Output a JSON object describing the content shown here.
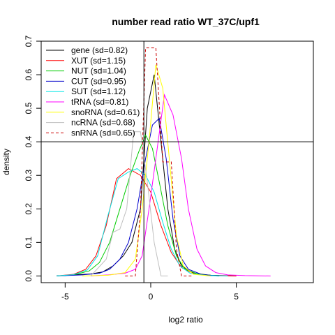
{
  "chart_data": {
    "type": "line",
    "title": "number read ratio WT_37C/upf1",
    "xlabel": "log2 ratio",
    "ylabel": "density",
    "xlim": [
      -6.4,
      9.5
    ],
    "ylim": [
      -0.02,
      0.7
    ],
    "x_ticks": [
      -5,
      0,
      5
    ],
    "y_ticks": [
      0.0,
      0.1,
      0.2,
      0.3,
      0.4,
      0.5,
      0.6,
      0.7
    ],
    "reference_lines": [
      {
        "orientation": "vertical",
        "x": -0.4
      },
      {
        "orientation": "horizontal",
        "y": 0.4
      }
    ],
    "legend": {
      "placement": "top-left"
    },
    "series": [
      {
        "name": "gene (sd=0.82)",
        "color": "#000000",
        "dash": "solid",
        "points": [
          [
            -5.5,
            0
          ],
          [
            -4.5,
            0.003
          ],
          [
            -3.5,
            0.006
          ],
          [
            -2.8,
            0.012
          ],
          [
            -2.2,
            0.03
          ],
          [
            -1.6,
            0.06
          ],
          [
            -1.1,
            0.1
          ],
          [
            -0.6,
            0.2
          ],
          [
            -0.2,
            0.5
          ],
          [
            0.2,
            0.6
          ],
          [
            0.6,
            0.4
          ],
          [
            1.0,
            0.2
          ],
          [
            1.4,
            0.08
          ],
          [
            1.8,
            0.03
          ],
          [
            2.5,
            0.008
          ],
          [
            3.5,
            0.002
          ],
          [
            5.0,
            0
          ]
        ]
      },
      {
        "name": "XUT (sd=1.15)",
        "color": "#ff0000",
        "dash": "solid",
        "points": [
          [
            -5.5,
            0
          ],
          [
            -4.5,
            0.005
          ],
          [
            -3.8,
            0.02
          ],
          [
            -3.2,
            0.06
          ],
          [
            -2.6,
            0.15
          ],
          [
            -2.0,
            0.29
          ],
          [
            -1.3,
            0.32
          ],
          [
            -0.6,
            0.3
          ],
          [
            0,
            0.25
          ],
          [
            0.6,
            0.15
          ],
          [
            1.2,
            0.07
          ],
          [
            1.8,
            0.025
          ],
          [
            2.5,
            0.007
          ],
          [
            3.5,
            0.001
          ],
          [
            5.0,
            0
          ]
        ]
      },
      {
        "name": "NUT (sd=1.04)",
        "color": "#00cc00",
        "dash": "solid",
        "points": [
          [
            -5.5,
            0
          ],
          [
            -4.5,
            0.003
          ],
          [
            -3.6,
            0.015
          ],
          [
            -3.0,
            0.04
          ],
          [
            -2.4,
            0.1
          ],
          [
            -1.8,
            0.2
          ],
          [
            -1.2,
            0.3
          ],
          [
            -0.7,
            0.37
          ],
          [
            -0.3,
            0.42
          ],
          [
            0.1,
            0.38
          ],
          [
            0.5,
            0.28
          ],
          [
            1.0,
            0.15
          ],
          [
            1.5,
            0.06
          ],
          [
            2.0,
            0.02
          ],
          [
            2.8,
            0.005
          ],
          [
            4.0,
            0
          ]
        ]
      },
      {
        "name": "CUT (sd=0.95)",
        "color": "#0000cc",
        "dash": "solid",
        "points": [
          [
            -5.5,
            0
          ],
          [
            -4.0,
            0.003
          ],
          [
            -3.0,
            0.008
          ],
          [
            -2.4,
            0.02
          ],
          [
            -1.8,
            0.05
          ],
          [
            -1.3,
            0.1
          ],
          [
            -0.8,
            0.2
          ],
          [
            -0.3,
            0.35
          ],
          [
            0.1,
            0.45
          ],
          [
            0.5,
            0.47
          ],
          [
            0.9,
            0.35
          ],
          [
            1.3,
            0.17
          ],
          [
            1.7,
            0.06
          ],
          [
            2.2,
            0.02
          ],
          [
            3.0,
            0.004
          ],
          [
            4.0,
            0
          ]
        ]
      },
      {
        "name": "SUT (sd=1.12)",
        "color": "#00e5e5",
        "dash": "solid",
        "points": [
          [
            -5.5,
            0
          ],
          [
            -4.5,
            0.004
          ],
          [
            -3.7,
            0.018
          ],
          [
            -3.1,
            0.06
          ],
          [
            -2.5,
            0.18
          ],
          [
            -1.9,
            0.29
          ],
          [
            -1.3,
            0.31
          ],
          [
            -0.8,
            0.32
          ],
          [
            -0.3,
            0.3
          ],
          [
            0.2,
            0.25
          ],
          [
            0.7,
            0.16
          ],
          [
            1.2,
            0.08
          ],
          [
            1.7,
            0.03
          ],
          [
            2.3,
            0.008
          ],
          [
            3.3,
            0.001
          ],
          [
            4.5,
            0
          ]
        ]
      },
      {
        "name": "tRNA (sd=0.81)",
        "color": "#ff00ff",
        "dash": "solid",
        "points": [
          [
            -3.5,
            0
          ],
          [
            -2.5,
            0.003
          ],
          [
            -1.5,
            0.008
          ],
          [
            -0.9,
            0.02
          ],
          [
            -0.5,
            0.06
          ],
          [
            -0.1,
            0.2
          ],
          [
            0.3,
            0.35
          ],
          [
            0.8,
            0.54
          ],
          [
            1.3,
            0.48
          ],
          [
            1.8,
            0.35
          ],
          [
            2.2,
            0.2
          ],
          [
            2.7,
            0.08
          ],
          [
            3.2,
            0.03
          ],
          [
            3.8,
            0.01
          ],
          [
            4.5,
            0.003
          ],
          [
            5.5,
            0.001
          ],
          [
            7.0,
            0
          ]
        ]
      },
      {
        "name": "snoRNA (sd=0.61)",
        "color": "#ffff00",
        "dash": "solid",
        "points": [
          [
            -4.0,
            0
          ],
          [
            -2.5,
            0.002
          ],
          [
            -1.5,
            0.01
          ],
          [
            -0.9,
            0.05
          ],
          [
            -0.5,
            0.2
          ],
          [
            -0.1,
            0.4
          ],
          [
            0.3,
            0.63
          ],
          [
            0.7,
            0.56
          ],
          [
            1.1,
            0.34
          ],
          [
            1.5,
            0.12
          ],
          [
            1.9,
            0.03
          ],
          [
            2.5,
            0.005
          ],
          [
            3.5,
            0
          ]
        ]
      },
      {
        "name": "ncRNA (sd=0.68)",
        "color": "#bfbfbf",
        "dash": "solid",
        "points": [
          [
            -3.5,
            0
          ],
          [
            -2.6,
            0.05
          ],
          [
            -2.2,
            0.13
          ],
          [
            -1.8,
            0.14
          ],
          [
            -1.4,
            0.2
          ],
          [
            -1.0,
            0.43
          ],
          [
            -0.6,
            0.43
          ],
          [
            -0.2,
            0.28
          ],
          [
            0.2,
            0.1
          ],
          [
            0.6,
            0
          ],
          [
            1.0,
            0
          ]
        ]
      },
      {
        "name": "snRNA (sd=0.65)",
        "color": "#cc0000",
        "dash": "dashed",
        "points": [
          [
            -1.5,
            0
          ],
          [
            -0.9,
            0
          ],
          [
            -0.6,
            0.2
          ],
          [
            -0.3,
            0.68
          ],
          [
            0.3,
            0.68
          ],
          [
            0.7,
            0.34
          ],
          [
            1.2,
            0.34
          ],
          [
            1.5,
            0.08
          ],
          [
            1.8,
            0
          ],
          [
            2.5,
            0
          ]
        ]
      }
    ]
  }
}
